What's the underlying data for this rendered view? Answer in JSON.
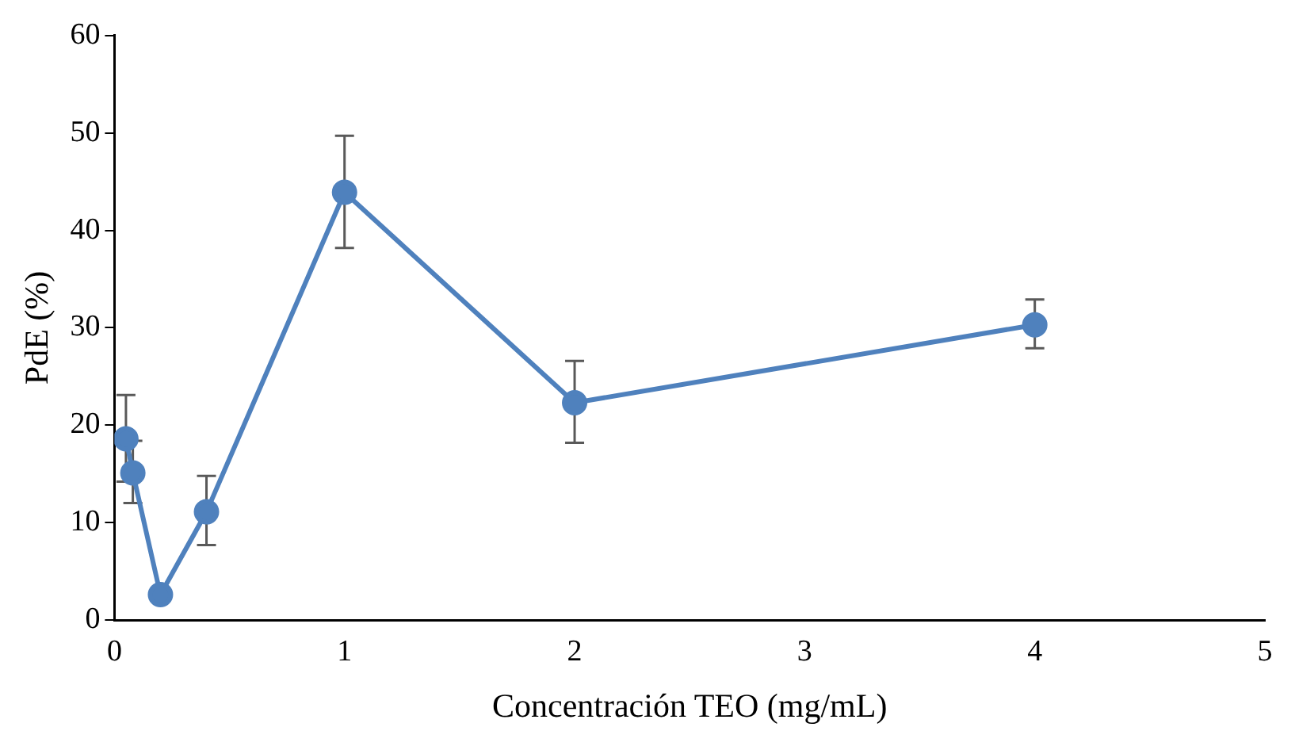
{
  "chart_data": {
    "type": "line",
    "xlabel": "Concentración TEO (mg/mL)",
    "ylabel": "PdE (%)",
    "x": [
      0.05,
      0.08,
      0.2,
      0.4,
      1,
      2,
      4
    ],
    "series": [
      {
        "color": "#4f81bd",
        "values": [
          18.6,
          15.1,
          2.6,
          11.1,
          43.9,
          22.3,
          30.3
        ],
        "errors": [
          [
            14.2,
            23.1
          ],
          [
            12.0,
            18.4
          ],
          null,
          [
            7.7,
            14.8
          ],
          [
            38.2,
            49.7
          ],
          [
            18.2,
            26.6
          ],
          [
            27.9,
            32.9
          ]
        ]
      }
    ],
    "xlim": [
      0,
      5
    ],
    "xticks": [
      0,
      1,
      2,
      3,
      4,
      5
    ],
    "ylim": [
      0,
      60
    ],
    "yticks": [
      0,
      10,
      20,
      30,
      40,
      50,
      60
    ],
    "marker": "circle",
    "line_style": "solid",
    "grid": false,
    "legend": false
  }
}
